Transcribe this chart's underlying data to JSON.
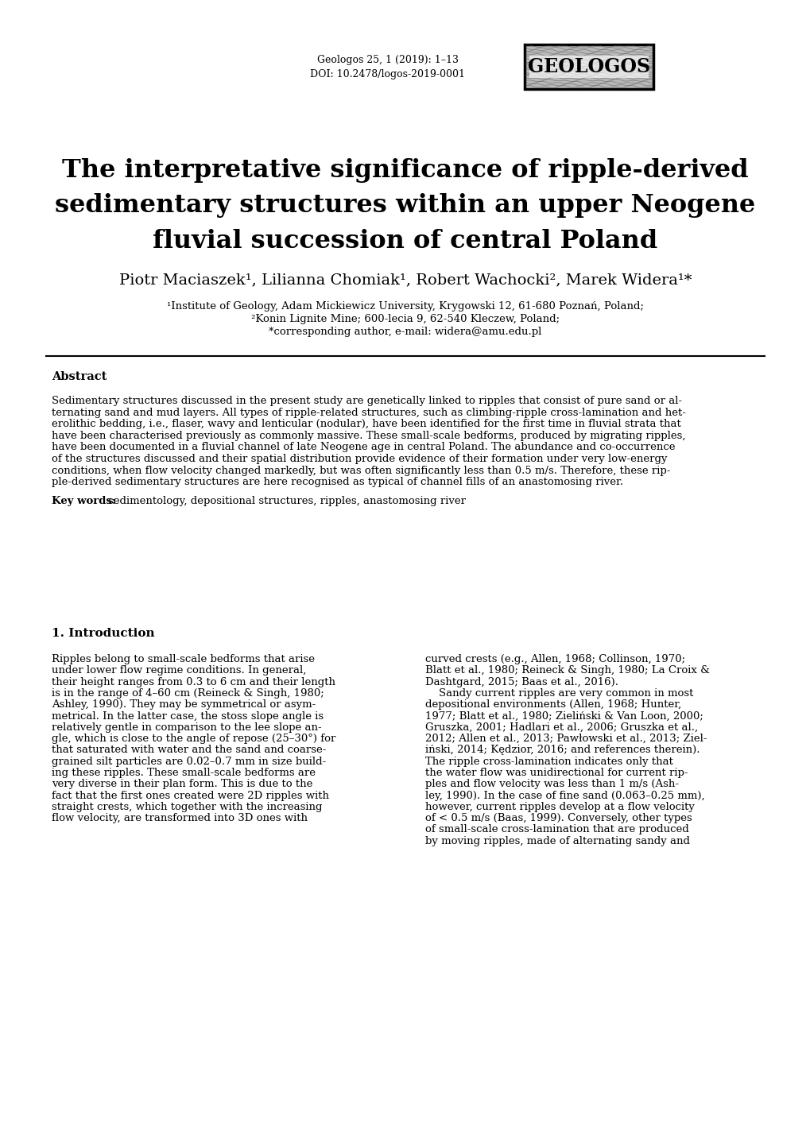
{
  "page_bg": "#ffffff",
  "journal_line1": "Geologos 25, 1 (2019): 1–13",
  "journal_line2": "DOI: 10.2478/logos-2019-0001",
  "logo_text": "GEOLOGOS",
  "title_line1": "The interpretative significance of ripple-derived",
  "title_line2": "sedimentary structures within an upper Neogene",
  "title_line3": "fluvial succession of central Poland",
  "authors": "Piotr Maciaszek¹, Lilianna Chomiak¹, Robert Wachocki², Marek Widera¹*",
  "affil1": "¹Institute of Geology, Adam Mickiewicz University, Krygowski 12, 61-680 Poznań, Poland;",
  "affil2": "²Konin Lignite Mine; 600-lecia 9, 62-540 Kleczew, Poland;",
  "affil3": "*corresponding author, e-mail: widera@amu.edu.pl",
  "abstract_label": "Abstract",
  "abstract_lines": [
    "Sedimentary structures discussed in the present study are genetically linked to ripples that consist of pure sand or al-",
    "ternating sand and mud layers. All types of ripple-related structures, such as climbing-ripple cross-lamination and het-",
    "erolithic bedding, i.e., flaser, wavy and lenticular (nodular), have been identified for the first time in fluvial strata that",
    "have been characterised previously as commonly massive. These small-scale bedforms, produced by migrating ripples,",
    "have been documented in a fluvial channel of late Neogene age in central Poland. The abundance and co-occurrence",
    "of the structures discussed and their spatial distribution provide evidence of their formation under very low-energy",
    "conditions, when flow velocity changed markedly, but was often significantly less than 0.5 m/s. Therefore, these rip-",
    "ple-derived sedimentary structures are here recognised as typical of channel fills of an anastomosing river."
  ],
  "keywords_label": "Key words:",
  "keywords_text": "sedimentology, depositional structures, ripples, anastomosing river",
  "section_title": "1. Introduction",
  "col1_lines": [
    "Ripples belong to small-scale bedforms that arise",
    "under lower flow regime conditions. In general,",
    "their height ranges from 0.3 to 6 cm and their length",
    "is in the range of 4–60 cm (Reineck & Singh, 1980;",
    "Ashley, 1990). They may be symmetrical or asym-",
    "metrical. In the latter case, the stoss slope angle is",
    "relatively gentle in comparison to the lee slope an-",
    "gle, which is close to the angle of repose (25–30°) for",
    "that saturated with water and the sand and coarse-",
    "grained silt particles are 0.02–0.7 mm in size build-",
    "ing these ripples. These small-scale bedforms are",
    "very diverse in their plan form. This is due to the",
    "fact that the first ones created were 2D ripples with",
    "straight crests, which together with the increasing",
    "flow velocity, are transformed into 3D ones with"
  ],
  "col2_lines": [
    "curved crests (e.g., Allen, 1968; Collinson, 1970;",
    "Blatt et al., 1980; Reineck & Singh, 1980; La Croix &",
    "Dashtgard, 2015; Baas et al., 2016).",
    "    Sandy current ripples are very common in most",
    "depositional environments (Allen, 1968; Hunter,",
    "1977; Blatt et al., 1980; Zieliński & Van Loon, 2000;",
    "Gruszka, 2001; Hadlari et al., 2006; Gruszka et al.,",
    "2012; Allen et al., 2013; Pawłowski et al., 2013; Ziel-",
    "iński, 2014; Kędzior, 2016; and references therein).",
    "The ripple cross-lamination indicates only that",
    "the water flow was unidirectional for current rip-",
    "ples and flow velocity was less than 1 m/s (Ash-",
    "ley, 1990). In the case of fine sand (0.063–0.25 mm),",
    "however, current ripples develop at a flow velocity",
    "of < 0.5 m/s (Baas, 1999). Conversely, other types",
    "of small-scale cross-lamination that are produced",
    "by moving ripples, made of alternating sandy and"
  ]
}
